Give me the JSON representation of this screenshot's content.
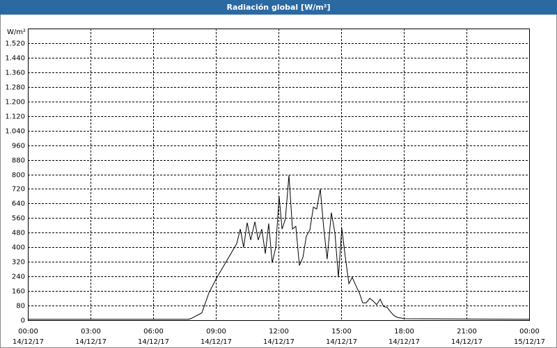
{
  "chart_data": {
    "type": "line",
    "title": "Radiación global [W/m²]",
    "y_label": "W/m²",
    "color": "#000000",
    "grid": true,
    "x": [
      0,
      7.7,
      7.83,
      8.33,
      8.67,
      9.03,
      10,
      10.17,
      10.33,
      10.5,
      10.67,
      10.87,
      11.03,
      11.2,
      11.37,
      11.53,
      11.7,
      11.87,
      12.03,
      12.17,
      12.33,
      12.5,
      12.67,
      12.83,
      13,
      13.17,
      13.33,
      13.5,
      13.67,
      13.83,
      14,
      14.17,
      14.33,
      14.53,
      14.7,
      14.87,
      15.03,
      15.2,
      15.37,
      15.53,
      15.7,
      15.87,
      16.03,
      16.2,
      16.37,
      16.53,
      16.7,
      16.87,
      17.03,
      17.2,
      17.37,
      17.53,
      17.7,
      18.03,
      24
    ],
    "values": [
      5,
      5,
      10,
      40,
      150,
      230,
      420,
      500,
      400,
      535,
      440,
      540,
      440,
      500,
      365,
      530,
      315,
      400,
      680,
      500,
      555,
      795,
      500,
      515,
      300,
      345,
      460,
      495,
      620,
      610,
      720,
      500,
      335,
      590,
      480,
      235,
      505,
      345,
      200,
      235,
      190,
      150,
      95,
      95,
      120,
      105,
      85,
      115,
      75,
      70,
      45,
      25,
      15,
      8,
      5
    ],
    "xlim": [
      0,
      24
    ],
    "xticks": [
      {
        "value": 0,
        "label": "00:00"
      },
      {
        "value": 3,
        "label": "03:00"
      },
      {
        "value": 6,
        "label": "06:00"
      },
      {
        "value": 9,
        "label": "09:00"
      },
      {
        "value": 12,
        "label": "12:00"
      },
      {
        "value": 15,
        "label": "15:00"
      },
      {
        "value": 18,
        "label": "18:00"
      },
      {
        "value": 21,
        "label": "21:00"
      },
      {
        "value": 24,
        "label": "00:00"
      }
    ],
    "xtick_dates": [
      "14/12/17",
      "14/12/17",
      "14/12/17",
      "14/12/17",
      "14/12/17",
      "14/12/17",
      "14/12/17",
      "14/12/17",
      "15/12/17"
    ],
    "ylim": [
      0,
      1600
    ],
    "yticks": [
      0,
      80,
      160,
      240,
      320,
      400,
      480,
      560,
      640,
      720,
      800,
      880,
      960,
      {
        "value": 1040,
        "label": "1.040"
      },
      {
        "value": 1120,
        "label": "1.120"
      },
      {
        "value": 1200,
        "label": "1.200"
      },
      {
        "value": 1280,
        "label": "1.280"
      },
      {
        "value": 1360,
        "label": "1.360"
      },
      {
        "value": 1440,
        "label": "1.440"
      },
      {
        "value": 1520,
        "label": "1.520"
      }
    ]
  }
}
